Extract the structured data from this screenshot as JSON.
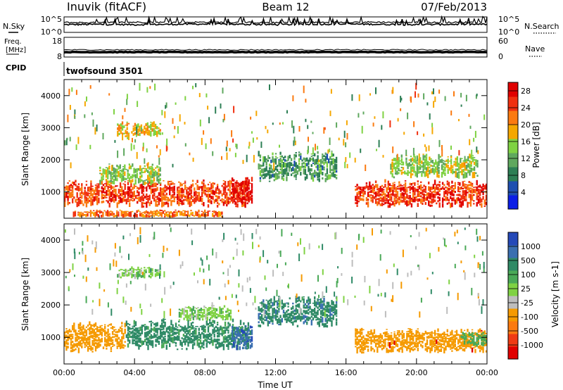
{
  "header": {
    "station": "Inuvik (fitACF)",
    "beam": "Beam 12",
    "date": "07/Feb/2013"
  },
  "strip_labels": {
    "n_sky": "N.Sky",
    "n_search": "N.Search",
    "freq_line1": "Freq.",
    "freq_line2": "[MHz]",
    "nave": "Nave",
    "cpid": "CPID",
    "cpid_value": "twofsound 3501"
  },
  "strip_ticks": {
    "noise_left": [
      "10^5",
      "10^0"
    ],
    "noise_right": [
      "10^5",
      "10^0"
    ],
    "freq_left": [
      "18",
      "8"
    ],
    "freq_right": [
      "60",
      "0"
    ]
  },
  "colors": {
    "power": [
      "#0b1ee6",
      "#1f4fb0",
      "#2d7f55",
      "#5fa85e",
      "#7fd243",
      "#f5a700",
      "#fb7a10",
      "#f03010",
      "#e00000"
    ],
    "velocity": [
      "#2449b8",
      "#3a6fb0",
      "#2f8a66",
      "#4aa957",
      "#7fd243",
      "#bdbdbd",
      "#f59a00",
      "#fb7a10",
      "#ef3b14",
      "#e00000"
    ],
    "ground_scatter": "#bdbdbd"
  },
  "chart_data": [
    {
      "type": "line",
      "panel": "noise",
      "x_unit": "hours UT",
      "series": [
        {
          "name": "N.Sky",
          "x": [
            0,
            2,
            4,
            6,
            8,
            10,
            12,
            14,
            16,
            18,
            20,
            22,
            24
          ],
          "y": [
            2.5,
            2.6,
            2.5,
            2.6,
            2.7,
            2.6,
            2.5,
            2.6,
            2.7,
            2.6,
            2.5,
            2.6,
            2.6
          ]
        },
        {
          "name": "N.Search",
          "x": [
            0,
            2,
            4,
            6,
            8,
            10,
            12,
            14,
            16,
            18,
            20,
            22,
            24
          ],
          "y": [
            3.2,
            3.1,
            3.3,
            3.2,
            3.3,
            3.2,
            3.1,
            3.2,
            3.3,
            3.3,
            3.2,
            3.2,
            3.3
          ]
        }
      ],
      "ylim": [
        0,
        5
      ],
      "ytick_labels": [
        "10^0",
        "10^5"
      ]
    },
    {
      "type": "line",
      "panel": "frequency",
      "x_unit": "hours UT",
      "series": [
        {
          "name": "Freq.",
          "x": [
            0,
            6,
            12,
            18,
            24
          ],
          "y": [
            10.5,
            10.5,
            10.5,
            10.5,
            10.5
          ]
        },
        {
          "name": "Nave",
          "x": [
            0,
            6,
            12,
            18,
            24
          ],
          "y": [
            22,
            22,
            22,
            22,
            22
          ]
        }
      ],
      "ylim_left": [
        8,
        18
      ],
      "ylim_right": [
        0,
        60
      ]
    },
    {
      "type": "heatmap",
      "panel": "power",
      "xlabel": "",
      "ylabel": "Slant Range [km]",
      "xlim": [
        0,
        24
      ],
      "ylim": [
        180,
        4500
      ],
      "yticks": [
        1000,
        2000,
        3000,
        4000
      ],
      "colorbar": {
        "label": "Power [dB]",
        "ticks": [
          4,
          8,
          12,
          16,
          20,
          24,
          28
        ],
        "range": [
          0,
          30
        ]
      },
      "regions": [
        {
          "t0": 0.0,
          "t1": 10.5,
          "r0": 500,
          "r1": 1400,
          "value": 24
        },
        {
          "t0": 2.0,
          "t1": 5.5,
          "r0": 1200,
          "r1": 1900,
          "value": 14
        },
        {
          "t0": 9.5,
          "t1": 10.7,
          "r0": 600,
          "r1": 1500,
          "value": 28
        },
        {
          "t0": 11.0,
          "t1": 15.5,
          "r0": 1300,
          "r1": 2300,
          "value": 10
        },
        {
          "t0": 16.5,
          "t1": 24.0,
          "r0": 500,
          "r1": 1400,
          "value": 25
        },
        {
          "t0": 18.5,
          "t1": 23.5,
          "r0": 1400,
          "r1": 2200,
          "value": 15
        },
        {
          "t0": 3.0,
          "t1": 5.5,
          "r0": 2700,
          "r1": 3200,
          "value": 18
        },
        {
          "t0": 0.5,
          "t1": 9.0,
          "r0": 200,
          "r1": 450,
          "value": 22
        }
      ]
    },
    {
      "type": "heatmap",
      "panel": "velocity",
      "xlabel": "Time UT",
      "ylabel": "Slant Range [km]",
      "xlim": [
        0,
        24
      ],
      "ylim": [
        180,
        4500
      ],
      "yticks": [
        1000,
        2000,
        3000,
        4000
      ],
      "xtick_labels": [
        "00:00",
        "04:00",
        "08:00",
        "12:00",
        "16:00",
        "20:00",
        "00:00"
      ],
      "colorbar": {
        "label": "Velocity [m s-1]",
        "ticks": [
          1000,
          500,
          100,
          25,
          -25,
          -100,
          -500,
          -1000
        ]
      },
      "regions": [
        {
          "t0": 0.0,
          "t1": 3.5,
          "r0": 500,
          "r1": 1500,
          "value": -200
        },
        {
          "t0": 3.5,
          "t1": 10.5,
          "r0": 600,
          "r1": 1600,
          "value": 150
        },
        {
          "t0": 9.5,
          "t1": 10.7,
          "r0": 600,
          "r1": 1400,
          "value": 800
        },
        {
          "t0": 6.5,
          "t1": 9.5,
          "r0": 1500,
          "r1": 2000,
          "value": 0
        },
        {
          "t0": 11.0,
          "t1": 15.5,
          "r0": 1300,
          "r1": 2300,
          "value": 400
        },
        {
          "t0": 16.5,
          "t1": 24.0,
          "r0": 500,
          "r1": 1300,
          "value": -350
        },
        {
          "t0": 22.5,
          "t1": 24.0,
          "r0": 700,
          "r1": 1200,
          "value": 60
        },
        {
          "t0": 3.0,
          "t1": 5.5,
          "r0": 2800,
          "r1": 3200,
          "value": 0
        }
      ]
    }
  ]
}
